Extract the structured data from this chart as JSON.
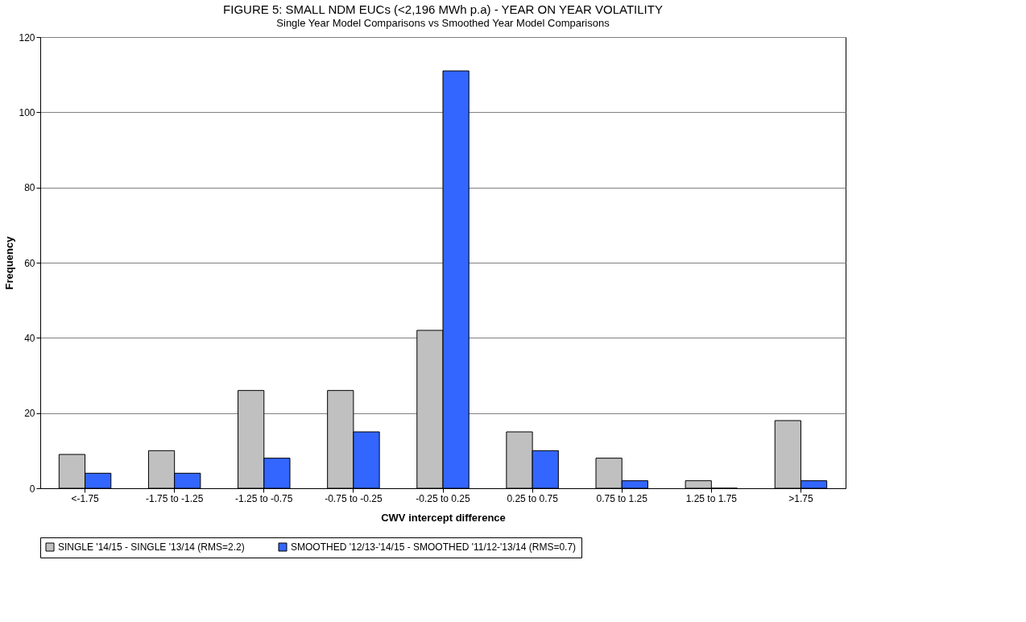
{
  "chart_data": {
    "type": "bar",
    "title": "FIGURE 5: SMALL NDM EUCs (<2,196 MWh p.a) - YEAR ON YEAR VOLATILITY",
    "subtitle": "Single Year Model Comparisons vs Smoothed Year Model Comparisons",
    "xlabel": "CWV intercept difference",
    "ylabel": "Frequency",
    "categories": [
      "<-1.75",
      "-1.75 to -1.25",
      "-1.25 to -0.75",
      "-0.75 to -0.25",
      "-0.25 to 0.25",
      "0.25 to 0.75",
      "0.75 to 1.25",
      "1.25 to 1.75",
      ">1.75"
    ],
    "series": [
      {
        "name": "SINGLE '14/15 - SINGLE '13/14 (RMS=2.2)",
        "color": "#c0c0c0",
        "values": [
          9,
          10,
          26,
          26,
          42,
          15,
          8,
          2,
          18
        ]
      },
      {
        "name": "SMOOTHED '12/13-'14/15 - SMOOTHED '11/12-'13/14 (RMS=0.7)",
        "color": "#3366ff",
        "values": [
          4,
          4,
          8,
          15,
          111,
          10,
          2,
          0,
          2
        ]
      }
    ],
    "ylim": [
      0,
      120
    ],
    "yticks": [
      0,
      20,
      40,
      60,
      80,
      100,
      120
    ],
    "grid": "y",
    "legend": "bottom"
  }
}
